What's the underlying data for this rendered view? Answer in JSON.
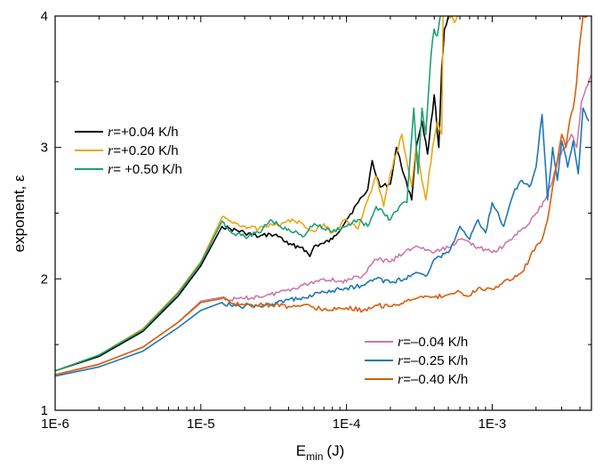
{
  "chart_data": {
    "type": "line",
    "xlabel": "E",
    "xlabel_sub": "min",
    "xlabel_unit": "(J)",
    "ylabel": "exponent, ε",
    "x_scale": "log",
    "xlim": [
      1e-06,
      0.0048
    ],
    "ylim": [
      1,
      4
    ],
    "x_ticks": [
      {
        "value": 1e-06,
        "label": "1E-6"
      },
      {
        "value": 1e-05,
        "label": "1E-5"
      },
      {
        "value": 0.0001,
        "label": "1E-4"
      },
      {
        "value": 0.001,
        "label": "1E-3"
      }
    ],
    "y_ticks": [
      {
        "value": 1,
        "label": "1"
      },
      {
        "value": 2,
        "label": "2"
      },
      {
        "value": 3,
        "label": "3"
      },
      {
        "value": 4,
        "label": "4"
      }
    ],
    "grid": false,
    "legend": [
      {
        "placement": "upper-left",
        "entries": [
          0,
          1,
          2
        ]
      },
      {
        "placement": "lower-right",
        "entries": [
          3,
          4,
          5
        ]
      }
    ],
    "series": [
      {
        "name": "r=+0.04 K/h",
        "var": "r",
        "rest": "=+0.04 K/h",
        "color": "#000000",
        "x": [
          1e-06,
          2e-06,
          4e-06,
          7e-06,
          1e-05,
          1.4e-05,
          1.6e-05,
          2e-05,
          2.5e-05,
          3e-05,
          3.5e-05,
          4e-05,
          5e-05,
          5.6e-05,
          6e-05,
          7e-05,
          8e-05,
          0.0001,
          0.00012,
          0.00014,
          0.00015,
          0.00017,
          0.0002,
          0.00022,
          0.00025,
          0.00028,
          0.0003,
          0.00033,
          0.00036,
          0.0004,
          0.00043,
          0.00045,
          0.00047,
          0.0005
        ],
        "y": [
          1.3,
          1.41,
          1.6,
          1.87,
          2.1,
          2.4,
          2.38,
          2.35,
          2.32,
          2.34,
          2.32,
          2.26,
          2.24,
          2.17,
          2.25,
          2.27,
          2.3,
          2.45,
          2.58,
          2.68,
          2.9,
          2.7,
          2.72,
          3.0,
          2.78,
          2.6,
          3.0,
          3.2,
          2.95,
          3.4,
          3.0,
          3.6,
          3.9,
          4.0
        ]
      },
      {
        "name": "r=+0.20 K/h",
        "var": "r",
        "rest": "=+0.20 K/h",
        "color": "#e6a817",
        "x": [
          1e-06,
          2e-06,
          4e-06,
          7e-06,
          1e-05,
          1.4e-05,
          1.6e-05,
          2e-05,
          2.5e-05,
          3e-05,
          3.5e-05,
          4e-05,
          5e-05,
          6e-05,
          7e-05,
          8e-05,
          0.0001,
          0.00012,
          0.00014,
          0.00016,
          0.00018,
          0.0002,
          0.00024,
          0.00028,
          0.0003,
          0.00035,
          0.00039,
          0.00042,
          0.00045,
          0.00046,
          0.00053,
          0.00055,
          0.0006,
          0.00065
        ],
        "y": [
          1.3,
          1.42,
          1.62,
          1.9,
          2.13,
          2.47,
          2.44,
          2.4,
          2.38,
          2.42,
          2.4,
          2.45,
          2.42,
          2.36,
          2.42,
          2.35,
          2.45,
          2.38,
          2.6,
          2.78,
          2.55,
          2.8,
          3.1,
          2.7,
          3.0,
          2.6,
          3.0,
          3.2,
          3.1,
          4.0,
          4.0,
          3.95,
          4.0,
          4.0
        ]
      },
      {
        "name": "r= +0.50 K/h",
        "var": "r",
        "rest": "= +0.50 K/h",
        "color": "#1e9e76",
        "x": [
          1e-06,
          2e-06,
          4e-06,
          7e-06,
          1e-05,
          1.4e-05,
          1.6e-05,
          2e-05,
          2.5e-05,
          3e-05,
          3.5e-05,
          4e-05,
          5e-05,
          6e-05,
          7e-05,
          8e-05,
          0.0001,
          0.00012,
          0.00014,
          0.00016,
          0.00018,
          0.0002,
          0.00023,
          0.00026,
          0.00029,
          0.00031,
          0.00033,
          0.00035,
          0.00038,
          0.0004,
          0.00042,
          0.00044
        ],
        "y": [
          1.3,
          1.42,
          1.61,
          1.89,
          2.12,
          2.44,
          2.36,
          2.32,
          2.35,
          2.45,
          2.4,
          2.38,
          2.32,
          2.42,
          2.38,
          2.36,
          2.4,
          2.45,
          2.4,
          2.55,
          2.5,
          2.45,
          2.55,
          2.58,
          3.3,
          2.8,
          3.3,
          3.1,
          3.7,
          3.9,
          3.85,
          4.0
        ]
      },
      {
        "name": "r=–0.04 K/h",
        "var": "r",
        "rest": "=–0.04 K/h",
        "color": "#cc79a7",
        "x": [
          1e-06,
          2e-06,
          4e-06,
          7e-06,
          1e-05,
          1.4e-05,
          1.6e-05,
          2e-05,
          3e-05,
          4e-05,
          5e-05,
          7e-05,
          0.0001,
          0.00013,
          0.00016,
          0.0002,
          0.00025,
          0.0003,
          0.0004,
          0.0005,
          0.0006,
          0.0007,
          0.0008,
          0.001,
          0.0012,
          0.0014,
          0.0016,
          0.0018,
          0.002,
          0.0023,
          0.0026,
          0.0029,
          0.0032,
          0.0035,
          0.0038,
          0.0041,
          0.0044,
          0.0048
        ],
        "y": [
          1.27,
          1.35,
          1.48,
          1.67,
          1.83,
          1.86,
          1.84,
          1.85,
          1.88,
          1.92,
          1.95,
          2.0,
          1.98,
          2.03,
          2.15,
          2.13,
          2.2,
          2.25,
          2.2,
          2.24,
          2.3,
          2.28,
          2.24,
          2.2,
          2.25,
          2.32,
          2.38,
          2.42,
          2.5,
          2.6,
          2.75,
          2.95,
          3.0,
          3.1,
          3.0,
          3.35,
          3.45,
          3.55
        ]
      },
      {
        "name": "r=–0.25 K/h",
        "var": "r",
        "rest": "=–0.25 K/h",
        "color": "#1f77b4",
        "x": [
          1e-06,
          2e-06,
          4e-06,
          7e-06,
          1e-05,
          1.4e-05,
          1.6e-05,
          2e-05,
          3e-05,
          4e-05,
          5e-05,
          7e-05,
          0.0001,
          0.00013,
          0.00016,
          0.0002,
          0.00025,
          0.0003,
          0.00035,
          0.0004,
          0.0005,
          0.0006,
          0.0007,
          0.0008,
          0.0009,
          0.001,
          0.0012,
          0.0014,
          0.0016,
          0.0018,
          0.002,
          0.0022,
          0.0024,
          0.0026,
          0.0028,
          0.003,
          0.0033,
          0.0036,
          0.0039,
          0.0042,
          0.0046
        ],
        "y": [
          1.26,
          1.33,
          1.45,
          1.63,
          1.76,
          1.82,
          1.8,
          1.79,
          1.8,
          1.84,
          1.86,
          1.9,
          1.93,
          1.95,
          2.0,
          1.97,
          2.0,
          2.05,
          2.02,
          2.15,
          2.2,
          2.4,
          2.3,
          2.45,
          2.35,
          2.58,
          2.4,
          2.65,
          2.75,
          2.7,
          2.85,
          3.25,
          2.6,
          3.0,
          2.75,
          3.05,
          2.85,
          3.05,
          2.8,
          3.3,
          3.2
        ]
      },
      {
        "name": "r=–0.40 K/h",
        "var": "r",
        "rest": "=–0.40 K/h",
        "color": "#d95f0e",
        "x": [
          1e-06,
          2e-06,
          4e-06,
          7e-06,
          1e-05,
          1.4e-05,
          1.6e-05,
          2e-05,
          3e-05,
          4e-05,
          5e-05,
          7e-05,
          0.0001,
          0.00013,
          0.00016,
          0.0002,
          0.00025,
          0.0003,
          0.0004,
          0.0005,
          0.0006,
          0.0007,
          0.0008,
          0.001,
          0.0012,
          0.0014,
          0.0016,
          0.0018,
          0.002,
          0.0022,
          0.0024,
          0.0026,
          0.0028,
          0.003,
          0.0032,
          0.0034,
          0.0036,
          0.0038,
          0.004,
          0.0042,
          0.0045
        ],
        "y": [
          1.27,
          1.35,
          1.48,
          1.67,
          1.82,
          1.85,
          1.82,
          1.8,
          1.8,
          1.79,
          1.8,
          1.77,
          1.78,
          1.76,
          1.8,
          1.79,
          1.83,
          1.85,
          1.86,
          1.88,
          1.9,
          1.87,
          1.93,
          1.92,
          1.98,
          2.0,
          2.05,
          2.15,
          2.25,
          2.3,
          2.45,
          2.7,
          2.9,
          3.1,
          3.0,
          3.2,
          3.3,
          3.5,
          3.8,
          4.0,
          4.0
        ]
      }
    ]
  }
}
